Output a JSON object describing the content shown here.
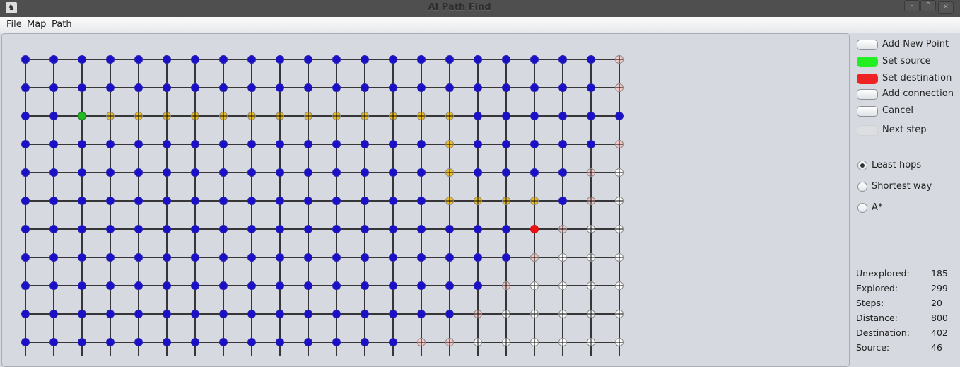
{
  "window": {
    "title": "AI Path Find",
    "minimize": "–",
    "maximize": "^",
    "close": "×"
  },
  "menu": [
    "File",
    "Map",
    "Path"
  ],
  "colors": {
    "explored": "#1a10c8",
    "path": "#f0c020",
    "source": "#22bb22",
    "destination": "#ee1111",
    "frontier": "#f5c8c8",
    "unexplored": "#ffffff"
  },
  "grid": {
    "legend": {
      "B": "explored",
      "Y": "path",
      "S": "source",
      "D": "destination",
      "P": "frontier",
      "W": "unexplored"
    },
    "rows": [
      "BBBBBBBBBBBBBBBBBBBBBP",
      "BBBBBBBBBBBBBBBBBBBBBP",
      "BBSYYYYYYYYYYYYYBBBBBB",
      "BBBBBBBBBBBBBBBYBBBBBP",
      "BBBBBBBBBBBBBBBYBBBBPW",
      "BBBBBBBBBBBBBBBYYYYBPW",
      "BBBBBBBBBBBBBBBBBBDPWW",
      "BBBBBBBBBBBBBBBBBBPWWW",
      "BBBBBBBBBBBBBBBBBPWWWW",
      "BBBBBBBBBBBBBBBBPWWWWW",
      "BBBBBBBBBBBBBBPPWWWWWW"
    ]
  },
  "buttons": [
    {
      "label": "Add New Point",
      "color": "#ffffff"
    },
    {
      "label": "Set source",
      "color": "#22ee22"
    },
    {
      "label": "Set destination",
      "color": "#ee2222"
    },
    {
      "label": "Add connection",
      "color": "#ffffff"
    },
    {
      "label": "Cancel",
      "color": "#ffffff"
    },
    {
      "label": "Next step",
      "color": "#dcdee2",
      "disabled": true
    }
  ],
  "algorithms": [
    {
      "label": "Least hops",
      "selected": true
    },
    {
      "label": "Shortest way",
      "selected": false
    },
    {
      "label": "A*",
      "selected": false
    }
  ],
  "stats": [
    {
      "label": "Unexplored:",
      "value": "185"
    },
    {
      "label": "Explored:",
      "value": "299"
    },
    {
      "label": "Steps:",
      "value": "20"
    },
    {
      "label": "Distance:",
      "value": "800"
    },
    {
      "label": "Destination:",
      "value": "402"
    },
    {
      "label": "Source:",
      "value": "46"
    }
  ]
}
